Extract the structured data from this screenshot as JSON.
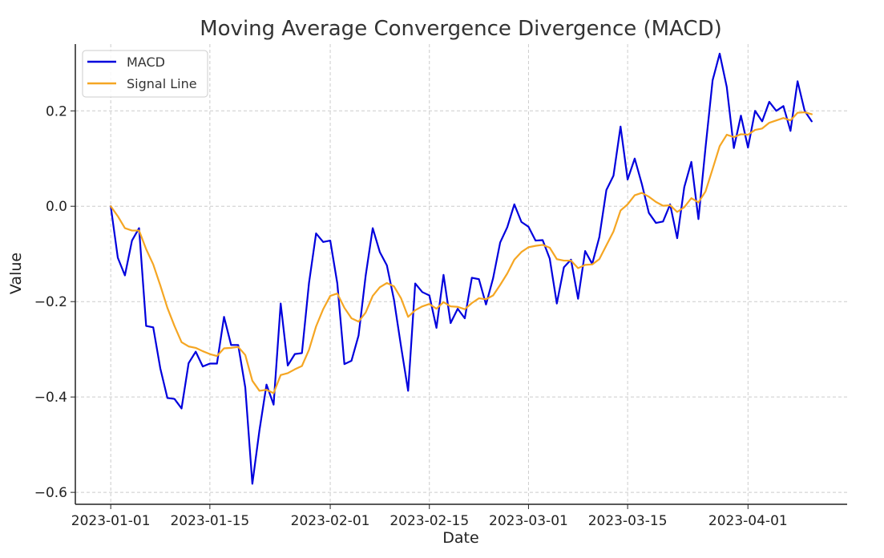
{
  "chart_data": {
    "type": "line",
    "title": "Moving Average Convergence Divergence (MACD)",
    "xlabel": "Date",
    "ylabel": "Value",
    "start_date": "2023-01-01",
    "xlim": [
      "2022-12-27",
      "2023-04-15"
    ],
    "ylim": [
      -0.625,
      0.34
    ],
    "yticks": [
      -0.6,
      -0.4,
      -0.2,
      0.0,
      0.2
    ],
    "ytick_labels": [
      "−0.6",
      "−0.4",
      "−0.2",
      "0.0",
      "0.2"
    ],
    "xticks": [
      "2023-01-01",
      "2023-01-15",
      "2023-02-01",
      "2023-02-15",
      "2023-03-01",
      "2023-03-15",
      "2023-04-01"
    ],
    "grid": true,
    "legend_position": "upper left",
    "series": [
      {
        "name": "MACD",
        "color": "#0000dd",
        "values": [
          0.0,
          -0.108,
          -0.145,
          -0.072,
          -0.046,
          -0.251,
          -0.254,
          -0.34,
          -0.402,
          -0.404,
          -0.424,
          -0.329,
          -0.305,
          -0.336,
          -0.33,
          -0.33,
          -0.232,
          -0.291,
          -0.291,
          -0.38,
          -0.582,
          -0.47,
          -0.374,
          -0.416,
          -0.204,
          -0.334,
          -0.31,
          -0.308,
          -0.161,
          -0.057,
          -0.075,
          -0.072,
          -0.162,
          -0.331,
          -0.324,
          -0.271,
          -0.146,
          -0.046,
          -0.096,
          -0.124,
          -0.196,
          -0.294,
          -0.387,
          -0.162,
          -0.18,
          -0.187,
          -0.255,
          -0.144,
          -0.245,
          -0.215,
          -0.235,
          -0.15,
          -0.153,
          -0.206,
          -0.151,
          -0.076,
          -0.044,
          0.004,
          -0.033,
          -0.043,
          -0.072,
          -0.071,
          -0.11,
          -0.204,
          -0.128,
          -0.112,
          -0.194,
          -0.094,
          -0.121,
          -0.065,
          0.034,
          0.064,
          0.167,
          0.056,
          0.1,
          0.047,
          -0.014,
          -0.035,
          -0.032,
          0.004,
          -0.067,
          0.04,
          0.093,
          -0.027,
          0.123,
          0.264,
          0.32,
          0.25,
          0.122,
          0.19,
          0.123,
          0.2,
          0.178,
          0.219,
          0.2,
          0.21,
          0.158,
          0.262,
          0.2,
          0.178
        ]
      },
      {
        "name": "Signal Line",
        "color": "#f5a623",
        "values": [
          0.0,
          -0.021,
          -0.046,
          -0.051,
          -0.051,
          -0.09,
          -0.122,
          -0.166,
          -0.213,
          -0.251,
          -0.285,
          -0.294,
          -0.297,
          -0.304,
          -0.31,
          -0.314,
          -0.298,
          -0.297,
          -0.295,
          -0.312,
          -0.366,
          -0.387,
          -0.385,
          -0.392,
          -0.354,
          -0.35,
          -0.342,
          -0.335,
          -0.301,
          -0.252,
          -0.216,
          -0.188,
          -0.183,
          -0.213,
          -0.235,
          -0.242,
          -0.223,
          -0.188,
          -0.17,
          -0.161,
          -0.168,
          -0.193,
          -0.232,
          -0.218,
          -0.21,
          -0.205,
          -0.215,
          -0.201,
          -0.21,
          -0.211,
          -0.216,
          -0.203,
          -0.193,
          -0.195,
          -0.187,
          -0.165,
          -0.141,
          -0.112,
          -0.096,
          -0.086,
          -0.083,
          -0.081,
          -0.087,
          -0.111,
          -0.114,
          -0.114,
          -0.13,
          -0.123,
          -0.122,
          -0.111,
          -0.082,
          -0.053,
          -0.009,
          0.004,
          0.023,
          0.028,
          0.02,
          0.009,
          0.001,
          0.002,
          -0.012,
          -0.002,
          0.017,
          0.008,
          0.031,
          0.078,
          0.126,
          0.15,
          0.145,
          0.151,
          0.15,
          0.16,
          0.163,
          0.175,
          0.18,
          0.185,
          0.18,
          0.196,
          0.197,
          0.193
        ]
      }
    ]
  }
}
